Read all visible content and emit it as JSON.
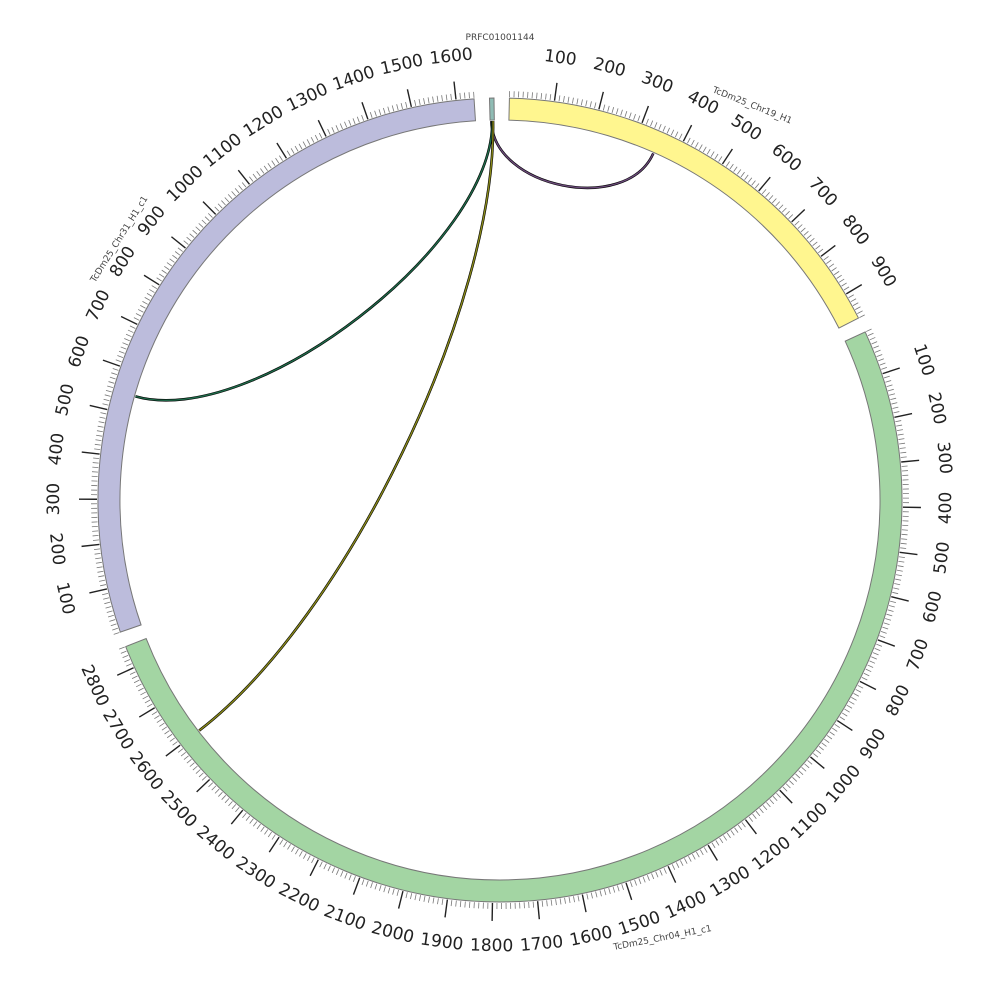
{
  "segments": [
    {
      "id": "prfc",
      "label": "PRFC01001144",
      "length": 10,
      "color": "#8fbcb4",
      "ticks": []
    },
    {
      "id": "chr19",
      "label": "TcDm25_Chr19_H1",
      "length": 960,
      "color": "#fff68f",
      "ticks": [
        "100",
        "200",
        "300",
        "400",
        "500",
        "600",
        "700",
        "800",
        "900"
      ]
    },
    {
      "id": "chr04",
      "label": "TcDm25_Chr04_H1_c1",
      "length": 2850,
      "color": "#a3d5a3",
      "ticks": [
        "100",
        "200",
        "300",
        "400",
        "500",
        "600",
        "700",
        "800",
        "900",
        "1000",
        "1100",
        "1200",
        "1300",
        "1400",
        "1500",
        "1600",
        "1700",
        "1800",
        "1900",
        "2000",
        "2100",
        "2200",
        "2300",
        "2400",
        "2500",
        "2600",
        "2700",
        "2800"
      ]
    },
    {
      "id": "chr31",
      "label": "TcDm25_Chr31_H1_c1",
      "length": 1640,
      "color": "#bcbcdc",
      "ticks": [
        "100",
        "200",
        "300",
        "400",
        "500",
        "600",
        "700",
        "800",
        "900",
        "1000",
        "1100",
        "1200",
        "1300",
        "1400",
        "1500",
        "1600"
      ]
    }
  ],
  "links": [
    {
      "from": "prfc",
      "from_pos": 3,
      "to": "chr19",
      "to_pos": 350,
      "color": "#6b4a7a"
    },
    {
      "from": "prfc",
      "from_pos": 5,
      "to": "chr31",
      "to_pos": 545,
      "color": "#1f6b4a"
    },
    {
      "from": "prfc",
      "from_pos": 7,
      "to": "chr04",
      "to_pos": 2600,
      "color": "#8a8a1a"
    }
  ]
}
